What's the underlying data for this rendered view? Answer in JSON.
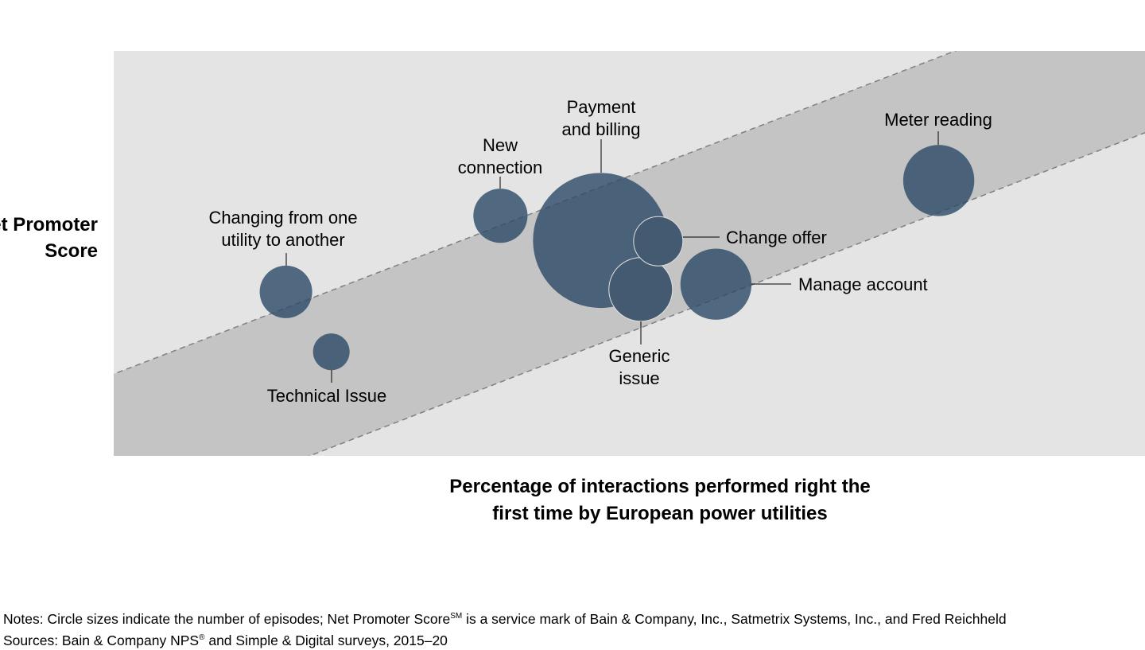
{
  "chart_data": {
    "type": "scatter",
    "subtype": "bubble",
    "xlabel": "Percentage of interactions performed right the\nfirst time by European power utilities",
    "ylabel": "Net Promoter\nScore",
    "xlim": [
      0,
      100
    ],
    "ylim": [
      0,
      100
    ],
    "axis_ticks": "none",
    "grid": false,
    "legend": "none",
    "band": {
      "upper_line": [
        [
          0,
          20.2
        ],
        [
          100,
          118.0
        ]
      ],
      "lower_line": [
        [
          19.0,
          0
        ],
        [
          100,
          79.8
        ]
      ],
      "style": "dashed"
    },
    "points": [
      {
        "label": "Changing from one\nutility to another",
        "x": 16.7,
        "y": 40.5,
        "size": 10.9
      },
      {
        "label": "Technical Issue",
        "x": 21.1,
        "y": 25.7,
        "size": 5.3
      },
      {
        "label": "New\nconnection",
        "x": 37.5,
        "y": 59.3,
        "size": 11.6
      },
      {
        "label": "Payment\nand billing",
        "x": 47.2,
        "y": 53.2,
        "size": 72.0
      },
      {
        "label": "Change offer",
        "x": 52.8,
        "y": 53.0,
        "size": 9.6
      },
      {
        "label": "Generic\nissue",
        "x": 51.1,
        "y": 41.1,
        "size": 16.0
      },
      {
        "label": "Manage account",
        "x": 58.4,
        "y": 42.4,
        "size": 20.0
      },
      {
        "label": "Meter reading",
        "x": 80.0,
        "y": 68.0,
        "size": 20.0
      }
    ]
  },
  "colors": {
    "plot_background": "#e4e4e4",
    "band": "#c4c4c4",
    "bubble": "#2a4a68",
    "dashed_line": "#808080"
  },
  "notes": {
    "line1_pre": "Notes: Circle sizes indicate the number of episodes; Net Promoter Score",
    "line1_sup": "SM",
    "line1_post": " is a service mark of Bain & Company, Inc., Satmetrix Systems, Inc., and Fred Reichheld",
    "line2_pre": "Sources: Bain & Company NPS",
    "line2_sup": "®",
    "line2_post": " and Simple & Digital surveys, 2015–20"
  }
}
